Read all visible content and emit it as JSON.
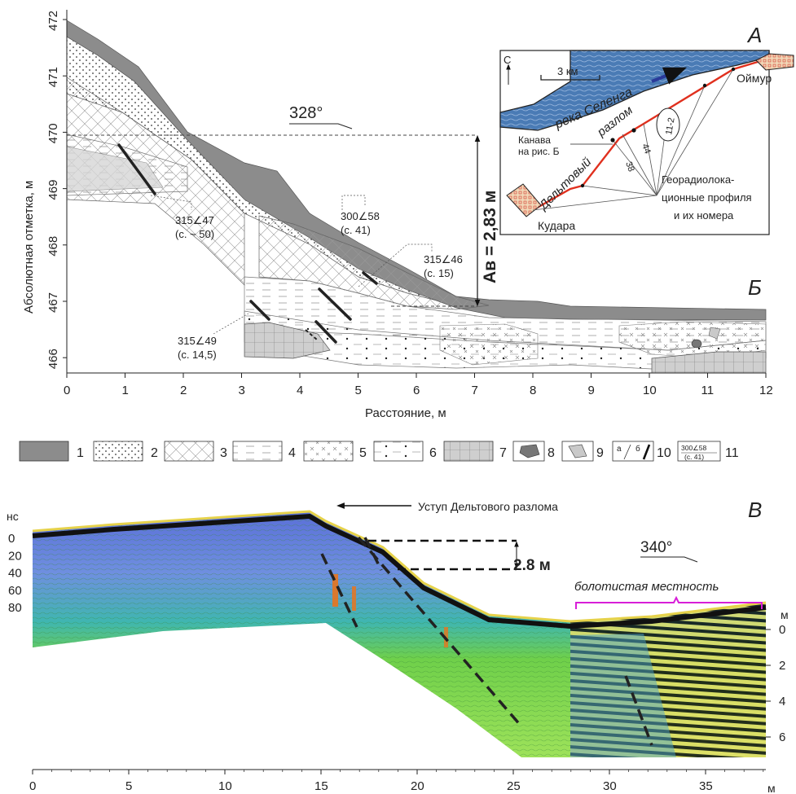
{
  "panel_b": {
    "letter": "Б",
    "ylabel": "Абсолютная  отметка, м",
    "xlabel": "Расстояние, м",
    "y_ticks": [
      "472",
      "471",
      "470",
      "469",
      "468",
      "467",
      "466"
    ],
    "x_ticks": [
      "0",
      "1",
      "2",
      "3",
      "4",
      "5",
      "6",
      "7",
      "8",
      "9",
      "10",
      "11",
      "12"
    ],
    "azimuth": "328°",
    "offset_label": "Ав = 2,83 м",
    "annotations": [
      {
        "angle": "315∠47",
        "note": "(с. ~ 50)"
      },
      {
        "angle": "300∠58",
        "note": "(с. 41)"
      },
      {
        "angle": "315∠46",
        "note": "(с. 15)"
      },
      {
        "angle": "315∠49",
        "note": "(с. 14,5)"
      }
    ]
  },
  "inset_a": {
    "letter": "А",
    "north": "С",
    "scale": "3 км",
    "river": "река Селенга",
    "fault_part1": "Дельтовый",
    "fault_part2": "разлом",
    "town_ne": "Оймур",
    "town_sw": "Кудара",
    "trench_line1": "Канава",
    "trench_line2": "на рис. Б",
    "profile_label": "11-2",
    "num_44": "44",
    "num_38": "38",
    "gpr_line1": "Георадиолока-",
    "gpr_line2": "ционные профиля",
    "gpr_line3": "и их номера"
  },
  "legend": {
    "items": [
      "1",
      "2",
      "3",
      "4",
      "5",
      "6",
      "7",
      "8",
      "9",
      "10",
      "11"
    ],
    "sub_a": "а",
    "sub_b": "б",
    "sample_angle": "300∠58",
    "sample_note": "(с. 41)"
  },
  "panel_v": {
    "letter": "В",
    "ns_label": "нс",
    "ns_ticks": [
      "0",
      "20",
      "40",
      "60",
      "80"
    ],
    "m_label": "м",
    "m_ticks": [
      "0",
      "2",
      "4",
      "6"
    ],
    "x_ticks": [
      "0",
      "5",
      "10",
      "15",
      "20",
      "25",
      "30",
      "35"
    ],
    "x_unit": "м",
    "scarp_label": "Уступ Дельтового разлома",
    "offset_label": "2.8 м",
    "azimuth": "340°",
    "swamp_label": "болотистая местность"
  },
  "colors": {
    "gray_layer": "#8c8c8c",
    "river": "#4a7bb5",
    "fault": "#e0301e",
    "bracket": "#d81ed8",
    "radar_green": "#6fd04a",
    "radar_blue": "#5a7fd0"
  }
}
